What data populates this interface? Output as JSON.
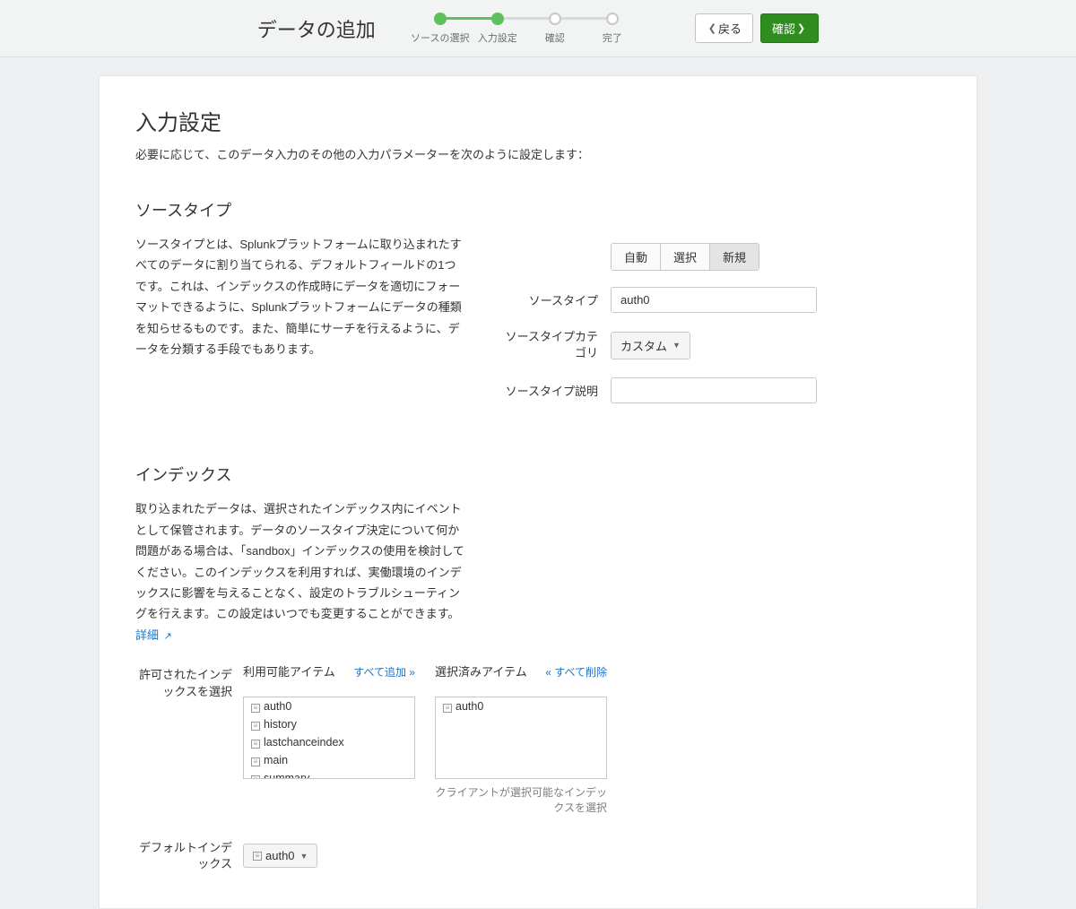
{
  "header": {
    "title": "データの追加",
    "steps": [
      {
        "label": "ソースの選択",
        "state": "done"
      },
      {
        "label": "入力設定",
        "state": "done"
      },
      {
        "label": "確認",
        "state": "pending"
      },
      {
        "label": "完了",
        "state": "pending"
      }
    ],
    "back": "戻る",
    "confirm": "確認"
  },
  "main": {
    "heading": "入力設定",
    "subtitle": "必要に応じて、このデータ入力のその他の入力パラメーターを次のように設定します：",
    "sourcetype": {
      "heading": "ソースタイプ",
      "desc": "ソースタイプとは、Splunkプラットフォームに取り込まれたすべてのデータに割り当てられる、デフォルトフィールドの1つです。これは、インデックスの作成時にデータを適切にフォーマットできるように、Splunkプラットフォームにデータの種類を知らせるものです。また、簡単にサーチを行えるように、データを分類する手段でもあります。",
      "pills": {
        "auto": "自動",
        "select": "選択",
        "new": "新規"
      },
      "labels": {
        "sourcetype": "ソースタイプ",
        "category": "ソースタイプカテゴリ",
        "description": "ソースタイプ説明"
      },
      "values": {
        "sourcetype": "auth0",
        "category": "カスタム"
      }
    },
    "index": {
      "heading": "インデックス",
      "desc_prefix": "取り込まれたデータは、選択されたインデックス内にイベントとして保管されます。データのソースタイプ決定について何か問題がある場合は、「sandbox」インデックスの使用を検討してください。このインデックスを利用すれば、実働環境のインデックスに影響を与えることなく、設定のトラブルシューティングを行えます。この設定はいつでも変更することができます。",
      "more": "詳細",
      "allowed_label": "許可されたインデックスを選択",
      "available_title": "利用可能アイテム",
      "add_all": "すべて追加 »",
      "selected_title": "選択済みアイテム",
      "remove_all": "« すべて削除",
      "available_items": [
        "auth0",
        "history",
        "lastchanceindex",
        "main",
        "summary"
      ],
      "selected_items": [
        "auth0"
      ],
      "help": "クライアントが選択可能なインデックスを選択",
      "default_label": "デフォルトインデックス",
      "default_value": "auth0"
    }
  }
}
